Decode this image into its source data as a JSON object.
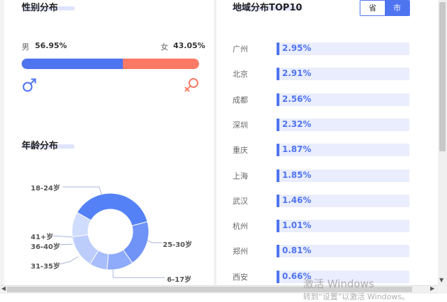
{
  "gender": {
    "title": "性别分布",
    "male_label": "男",
    "male_pct": "56.95%",
    "female_label": "女",
    "female_pct": "43.05%",
    "male_share": 0.5695,
    "male_icon": "male-symbol-icon",
    "female_icon": "female-symbol-icon",
    "male_color": "#4f74f0",
    "female_color": "#fb7a66"
  },
  "age": {
    "title": "年龄分布",
    "labels": {
      "a18_24": "18-24岁",
      "a25_30": "25-30岁",
      "a6_17": "6-17岁",
      "a31_35": "31-35岁",
      "a36_40": "36-40岁",
      "a41": "41+岁"
    }
  },
  "region": {
    "title": "地域分布TOP10",
    "toggle_province": "省",
    "toggle_city": "市",
    "active": "市",
    "rows": [
      {
        "city": "广州",
        "value": "2.95%"
      },
      {
        "city": "北京",
        "value": "2.91%"
      },
      {
        "city": "成都",
        "value": "2.56%"
      },
      {
        "city": "深圳",
        "value": "2.32%"
      },
      {
        "city": "重庆",
        "value": "1.87%"
      },
      {
        "city": "上海",
        "value": "1.85%"
      },
      {
        "city": "武汉",
        "value": "1.46%"
      },
      {
        "city": "杭州",
        "value": "1.01%"
      },
      {
        "city": "郑州",
        "value": "0.81%"
      },
      {
        "city": "西安",
        "value": "0.66%"
      }
    ]
  },
  "watermark": {
    "line1": "激活 Windows",
    "line2": "转到“设置”以激活 Windows。"
  },
  "colors": {
    "accent": "#4f74f0",
    "underline": "#dfe4fb",
    "bar_bg": "#e9edfd"
  }
}
